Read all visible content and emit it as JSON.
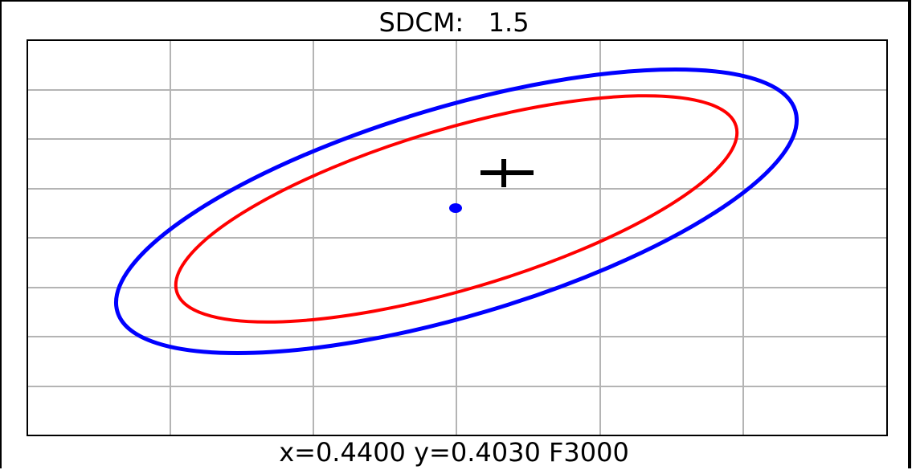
{
  "title": "SDCM:   1.5",
  "footer": "x=0.4400 y=0.4030 F3000",
  "colors": {
    "outer_ellipse": "#0000ff",
    "inner_ellipse": "#ff0000",
    "center_dot": "#0000ff",
    "cross_marker": "#000000",
    "grid": "#b4b4b4",
    "frame": "#000000"
  },
  "chart_data": {
    "type": "scatter",
    "grid": true,
    "grid_columns": 6,
    "grid_rows": 8,
    "series": [
      {
        "marker": "ellipse-outer",
        "color": "#0000ff"
      },
      {
        "marker": "ellipse-inner",
        "color": "#ff0000"
      },
      {
        "marker": "dot",
        "color": "#0000ff"
      },
      {
        "marker": "cross",
        "color": "#000000"
      }
    ]
  }
}
